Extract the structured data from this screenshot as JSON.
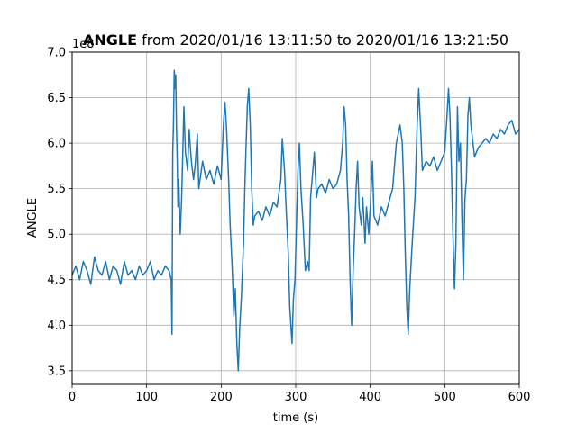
{
  "chart_data": {
    "type": "line",
    "title_bold": "ANGLE",
    "title_rest": " from 2020/01/16 13:11:50 to 2020/01/16 13:21:50",
    "xlabel": "time (s)",
    "ylabel": "ANGLE",
    "y_offset_text": "1e8",
    "xlim": [
      0,
      600
    ],
    "ylim": [
      3.35,
      7.0
    ],
    "x_ticks": [
      0,
      100,
      200,
      300,
      400,
      500,
      600
    ],
    "x_tick_labels": [
      "0",
      "100",
      "200",
      "300",
      "400",
      "500",
      "600"
    ],
    "y_ticks": [
      3.5,
      4.0,
      4.5,
      5.0,
      5.5,
      6.0,
      6.5,
      7.0
    ],
    "y_tick_labels": [
      "3.5",
      "4.0",
      "4.5",
      "5.0",
      "5.5",
      "6.0",
      "6.5",
      "7.0"
    ],
    "grid": true,
    "color": "#1f77b4",
    "series": [
      {
        "x": [
          0,
          5,
          10,
          15,
          20,
          25,
          30,
          35,
          40,
          45,
          50,
          55,
          60,
          65,
          70,
          75,
          80,
          85,
          90,
          95,
          100,
          105,
          110,
          115,
          120,
          125,
          130,
          133,
          134,
          135,
          136,
          137,
          138,
          139,
          140,
          141,
          142,
          143,
          145,
          147,
          150,
          152,
          155,
          157,
          160,
          163,
          165,
          168,
          170,
          175,
          180,
          185,
          190,
          195,
          200,
          203,
          205,
          207,
          210,
          212,
          215,
          217,
          219,
          221,
          223,
          225,
          227,
          230,
          232,
          235,
          237,
          239,
          241,
          243,
          245,
          250,
          255,
          260,
          265,
          270,
          275,
          280,
          282,
          285,
          287,
          290,
          292,
          295,
          297,
          299,
          301,
          303,
          305,
          307,
          310,
          313,
          316,
          318,
          320,
          323,
          325,
          328,
          330,
          335,
          340,
          345,
          350,
          355,
          360,
          363,
          365,
          367,
          369,
          371,
          373,
          375,
          377,
          379,
          381,
          383,
          385,
          388,
          390,
          393,
          395,
          398,
          400,
          403,
          405,
          410,
          415,
          420,
          425,
          430,
          435,
          440,
          443,
          445,
          447,
          449,
          451,
          453,
          455,
          457,
          460,
          463,
          465,
          468,
          470,
          475,
          480,
          485,
          490,
          495,
          500,
          503,
          505,
          507,
          509,
          511,
          513,
          515,
          517,
          519,
          521,
          523,
          525,
          527,
          529,
          531,
          533,
          535,
          540,
          545,
          550,
          555,
          560,
          565,
          570,
          575,
          580,
          585,
          590,
          595,
          600
        ],
        "y": [
          4.55,
          4.65,
          4.5,
          4.7,
          4.6,
          4.45,
          4.75,
          4.6,
          4.55,
          4.7,
          4.5,
          4.65,
          4.6,
          4.45,
          4.7,
          4.55,
          4.6,
          4.5,
          4.65,
          4.55,
          4.6,
          4.7,
          4.5,
          4.6,
          4.55,
          4.65,
          4.6,
          4.5,
          3.9,
          5.9,
          6.2,
          6.8,
          6.6,
          6.75,
          6.2,
          5.8,
          5.3,
          5.6,
          5.0,
          5.4,
          6.4,
          5.9,
          5.7,
          6.15,
          5.8,
          5.6,
          5.75,
          6.1,
          5.5,
          5.8,
          5.6,
          5.7,
          5.55,
          5.75,
          5.6,
          6.2,
          6.45,
          6.2,
          5.6,
          5.1,
          4.6,
          4.1,
          4.4,
          3.8,
          3.5,
          4.0,
          4.3,
          4.9,
          5.6,
          6.4,
          6.6,
          6.2,
          5.5,
          5.1,
          5.2,
          5.25,
          5.15,
          5.3,
          5.2,
          5.35,
          5.3,
          5.6,
          6.05,
          5.7,
          5.3,
          4.8,
          4.2,
          3.8,
          4.3,
          4.5,
          5.1,
          5.7,
          6.0,
          5.5,
          5.1,
          4.6,
          4.7,
          4.6,
          5.4,
          5.7,
          5.9,
          5.4,
          5.5,
          5.55,
          5.45,
          5.6,
          5.5,
          5.55,
          5.7,
          6.0,
          6.4,
          6.2,
          5.6,
          5.2,
          4.5,
          4.0,
          4.6,
          5.0,
          5.5,
          5.8,
          5.3,
          5.1,
          5.4,
          4.9,
          5.3,
          5.0,
          5.3,
          5.8,
          5.2,
          5.1,
          5.3,
          5.2,
          5.35,
          5.5,
          6.0,
          6.2,
          6.0,
          5.5,
          4.8,
          4.2,
          3.9,
          4.4,
          4.7,
          5.0,
          5.4,
          6.2,
          6.6,
          6.1,
          5.7,
          5.8,
          5.75,
          5.85,
          5.7,
          5.8,
          5.9,
          6.3,
          6.6,
          6.3,
          5.7,
          5.0,
          4.4,
          4.9,
          6.4,
          5.8,
          6.0,
          5.2,
          4.5,
          5.4,
          5.6,
          6.3,
          6.5,
          6.2,
          5.85,
          5.95,
          6.0,
          6.05,
          6.0,
          6.1,
          6.05,
          6.15,
          6.1,
          6.2,
          6.25,
          6.1,
          6.15
        ]
      }
    ]
  }
}
